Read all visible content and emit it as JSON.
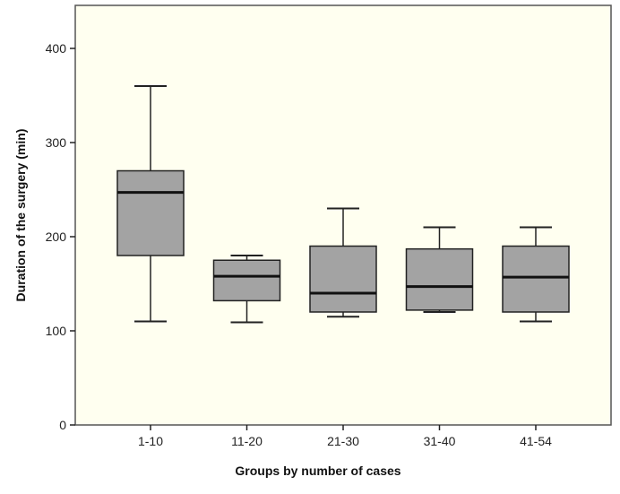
{
  "chart_data": {
    "type": "box",
    "xlabel": "Groups by number of cases",
    "ylabel": "Duration of the surgery (min)",
    "ylim": [
      0,
      400
    ],
    "yticks": [
      0,
      100,
      200,
      300,
      400
    ],
    "grid": false,
    "categories": [
      "1-10",
      "11-20",
      "21-30",
      "31-40",
      "41-54"
    ],
    "boxes": [
      {
        "category": "1-10",
        "min": 110,
        "q1": 180,
        "median": 247,
        "q3": 270,
        "max": 360
      },
      {
        "category": "11-20",
        "min": 109,
        "q1": 132,
        "median": 158,
        "q3": 175,
        "max": 180
      },
      {
        "category": "21-30",
        "min": 115,
        "q1": 120,
        "median": 140,
        "q3": 190,
        "max": 230
      },
      {
        "category": "31-40",
        "min": 120,
        "q1": 122,
        "median": 147,
        "q3": 187,
        "max": 210
      },
      {
        "category": "41-54",
        "min": 110,
        "q1": 120,
        "median": 157,
        "q3": 190,
        "max": 210
      }
    ],
    "colors": {
      "box_fill": "#a3a3a3",
      "stroke": "#222222",
      "plot_background": "#fffff0"
    }
  }
}
